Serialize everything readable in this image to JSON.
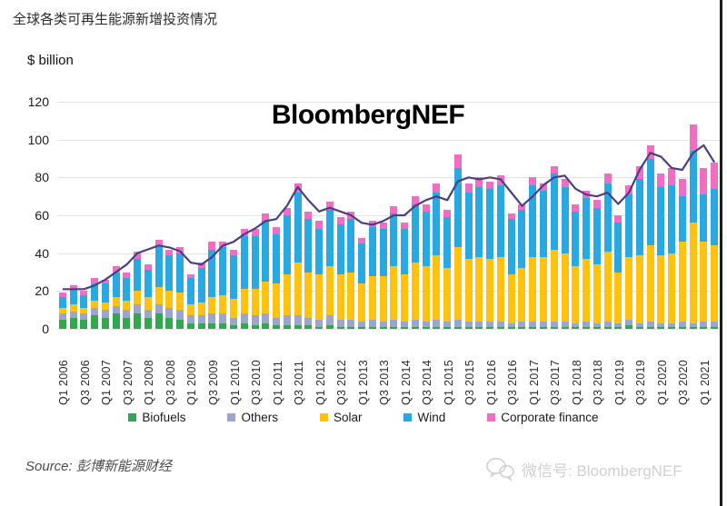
{
  "page": {
    "title": "全球各类可再生能源新增投资情况",
    "source_label": "Source: 彭博新能源财经",
    "wechat_label": "微信号: BloombergNEF"
  },
  "chart_data": {
    "type": "bar",
    "subtype": "stacked-bars-with-trend-line",
    "title": "全球各类可再生能源新增投资情况",
    "watermark": "BloombergNEF",
    "unit_label": "$ billion",
    "ylabel": "$ billion",
    "ylim": [
      0,
      120
    ],
    "yticks": [
      0,
      20,
      40,
      60,
      80,
      100,
      120
    ],
    "grid": true,
    "legend_position": "bottom",
    "x_tick_every": 2,
    "categories": [
      "Q1 2006",
      "Q2 2006",
      "Q3 2006",
      "Q4 2006",
      "Q1 2007",
      "Q2 2007",
      "Q3 2007",
      "Q4 2007",
      "Q1 2008",
      "Q2 2008",
      "Q3 2008",
      "Q4 2008",
      "Q1 2009",
      "Q2 2009",
      "Q3 2009",
      "Q4 2009",
      "Q1 2010",
      "Q2 2010",
      "Q3 2010",
      "Q4 2010",
      "Q1 2011",
      "Q2 2011",
      "Q3 2011",
      "Q4 2011",
      "Q1 2012",
      "Q2 2012",
      "Q3 2012",
      "Q4 2012",
      "Q1 2013",
      "Q2 2013",
      "Q3 2013",
      "Q4 2013",
      "Q1 2014",
      "Q2 2014",
      "Q3 2014",
      "Q4 2014",
      "Q1 2015",
      "Q2 2015",
      "Q3 2015",
      "Q4 2015",
      "Q1 2016",
      "Q2 2016",
      "Q3 2016",
      "Q4 2016",
      "Q1 2017",
      "Q2 2017",
      "Q3 2017",
      "Q4 2017",
      "Q1 2018",
      "Q2 2018",
      "Q3 2018",
      "Q4 2018",
      "Q1 2019",
      "Q2 2019",
      "Q3 2019",
      "Q4 2019",
      "Q1 2020",
      "Q2 2020",
      "Q3 2020",
      "Q4 2020",
      "Q1 2021",
      "Q2 2021"
    ],
    "series": [
      {
        "name": "Biofuels",
        "color": "#31A850",
        "values": [
          5,
          6,
          5,
          7,
          6,
          8,
          6,
          8,
          6,
          8,
          6,
          5,
          3,
          3,
          3,
          3,
          2,
          3,
          2,
          3,
          2,
          2,
          2,
          2,
          1,
          2,
          1,
          1,
          1,
          1,
          1,
          1,
          1,
          1,
          1,
          1,
          1,
          1,
          1,
          1,
          1,
          1,
          1,
          1,
          1,
          1,
          1,
          1,
          1,
          1,
          1,
          1,
          1,
          2,
          1,
          1,
          1,
          1,
          1,
          1,
          1,
          1
        ]
      },
      {
        "name": "Others",
        "color": "#9BA5CE",
        "values": [
          3,
          3,
          3,
          4,
          4,
          4,
          4,
          5,
          4,
          5,
          5,
          5,
          4,
          4,
          5,
          5,
          4,
          5,
          5,
          5,
          4,
          5,
          5,
          4,
          4,
          5,
          4,
          4,
          3,
          4,
          3,
          4,
          3,
          4,
          3,
          4,
          3,
          4,
          3,
          3,
          3,
          3,
          2,
          3,
          3,
          3,
          3,
          3,
          2,
          3,
          2,
          3,
          2,
          3,
          2,
          3,
          2,
          2,
          3,
          2,
          3,
          3
        ]
      },
      {
        "name": "Solar",
        "color": "#FFC20E",
        "values": [
          3,
          4,
          3,
          4,
          4,
          5,
          5,
          7,
          7,
          9,
          9,
          9,
          6,
          7,
          9,
          10,
          10,
          13,
          14,
          17,
          18,
          22,
          28,
          24,
          24,
          26,
          24,
          25,
          20,
          23,
          24,
          28,
          25,
          30,
          29,
          34,
          28,
          38,
          33,
          34,
          33,
          34,
          26,
          28,
          34,
          34,
          38,
          36,
          30,
          33,
          31,
          37,
          27,
          33,
          36,
          40,
          36,
          37,
          42,
          53,
          42,
          40
        ]
      },
      {
        "name": "Wind",
        "color": "#29A9E1",
        "values": [
          6,
          8,
          7,
          9,
          10,
          13,
          12,
          17,
          14,
          21,
          19,
          21,
          14,
          18,
          25,
          25,
          23,
          28,
          28,
          32,
          26,
          31,
          37,
          28,
          24,
          30,
          26,
          28,
          21,
          26,
          25,
          28,
          24,
          31,
          29,
          33,
          27,
          42,
          35,
          37,
          37,
          38,
          29,
          31,
          38,
          35,
          40,
          35,
          29,
          32,
          30,
          36,
          26,
          33,
          40,
          46,
          36,
          36,
          24,
          38,
          25,
          30
        ]
      },
      {
        "name": "Corporate finance",
        "color": "#F06EC2",
        "values": [
          2,
          2,
          2,
          3,
          2,
          3,
          3,
          4,
          3,
          4,
          3,
          3,
          2,
          3,
          4,
          3,
          3,
          4,
          4,
          4,
          4,
          4,
          5,
          4,
          4,
          4,
          4,
          4,
          3,
          3,
          3,
          4,
          3,
          4,
          4,
          5,
          4,
          7,
          5,
          5,
          4,
          5,
          3,
          3,
          4,
          4,
          4,
          4,
          4,
          4,
          4,
          5,
          4,
          5,
          7,
          7,
          7,
          9,
          9,
          14,
          14,
          14
        ]
      }
    ],
    "line_series": {
      "name": "Total investment trend",
      "color": "#4E3D85",
      "values": [
        21,
        21,
        21,
        23,
        26,
        30,
        34,
        40,
        42,
        44,
        43,
        41,
        35,
        34,
        38,
        44,
        46,
        50,
        53,
        57,
        58,
        65,
        75,
        68,
        62,
        64,
        62,
        60,
        56,
        55,
        57,
        60,
        60,
        65,
        68,
        70,
        68,
        78,
        80,
        79,
        80,
        79,
        72,
        65,
        70,
        76,
        80,
        81,
        74,
        71,
        70,
        72,
        66,
        72,
        84,
        93,
        91,
        85,
        84,
        93,
        97,
        88
      ]
    },
    "colors": {
      "grid": "#e3e3e3",
      "axis_text": "#1a1a1a"
    }
  }
}
